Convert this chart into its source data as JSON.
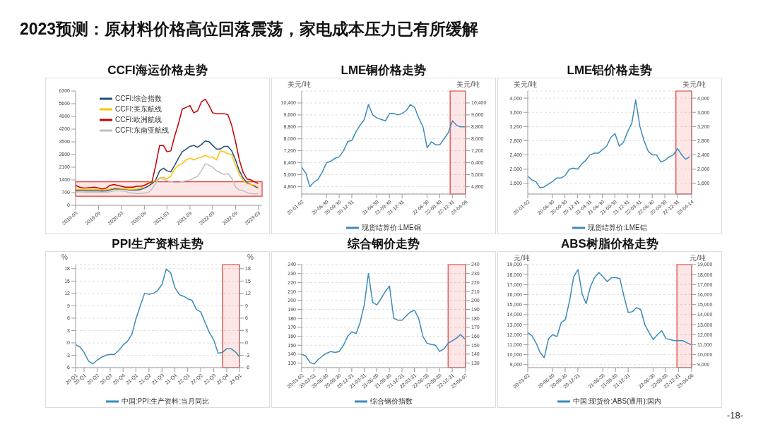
{
  "chart_data": [
    {
      "type": "other",
      "title": "2023预测：原材料价格高位回落震荡，家电成本压力已有所缓解",
      "annotations": [
        "-18-"
      ]
    },
    {
      "type": "line",
      "title": "CCFI海运价格走势",
      "legend": "top left",
      "x": [
        "2019-03",
        "2019-04",
        "2019-05",
        "2019-06",
        "2019-07",
        "2019-08",
        "2019-09",
        "2019-10",
        "2019-11",
        "2019-12",
        "2020-01",
        "2020-02",
        "2020-03",
        "2020-04",
        "2020-05",
        "2020-06",
        "2020-07",
        "2020-08",
        "2020-09",
        "2020-10",
        "2020-11",
        "2020-12",
        "2021-01",
        "2021-02",
        "2021-03",
        "2021-04",
        "2021-05",
        "2021-06",
        "2021-07",
        "2021-08",
        "2021-09",
        "2021-10",
        "2021-11",
        "2021-12",
        "2022-01",
        "2022-02",
        "2022-03",
        "2022-04",
        "2022-05",
        "2022-06",
        "2022-07",
        "2022-08",
        "2022-09",
        "2022-10",
        "2022-11",
        "2022-12",
        "2023-01",
        "2023-02",
        "2023-03"
      ],
      "xlim": [
        "2019-03",
        "2023-04"
      ],
      "xticks": [
        "2019-03",
        "2019-09",
        "2020-03",
        "2020-09",
        "2021-03",
        "2021-09",
        "2022-03",
        "2022-09",
        "2023-03"
      ],
      "ylim": [
        0,
        6300
      ],
      "yticks": [
        0,
        700,
        1400,
        2100,
        2800,
        3500,
        4200,
        4900,
        5600,
        6300
      ],
      "bands": [
        {
          "axis": "y",
          "from": 500,
          "to": 1300,
          "color": "#e53935"
        }
      ],
      "series": [
        {
          "name": "CCFI:综合指数",
          "color": "#1f4e79",
          "values": [
            830,
            820,
            810,
            800,
            800,
            800,
            800,
            790,
            800,
            850,
            900,
            900,
            900,
            880,
            860,
            850,
            850,
            870,
            950,
            1050,
            1200,
            1400,
            1900,
            2050,
            1900,
            1850,
            2200,
            2600,
            2950,
            3100,
            3250,
            3300,
            3200,
            3350,
            3550,
            3500,
            3300,
            3100,
            3100,
            3250,
            3250,
            3000,
            2500,
            1900,
            1500,
            1250,
            1150,
            1050,
            950
          ]
        },
        {
          "name": "CCFI:美东航线",
          "color": "#ffc000",
          "values": [
            880,
            870,
            860,
            860,
            870,
            880,
            870,
            860,
            870,
            900,
            950,
            950,
            920,
            900,
            880,
            880,
            900,
            950,
            1100,
            1250,
            1300,
            1350,
            1500,
            1550,
            1450,
            1600,
            2000,
            2200,
            2300,
            2500,
            2600,
            2500,
            2600,
            2650,
            2750,
            2650,
            2650,
            2500,
            3000,
            2950,
            2850,
            2800,
            2200,
            1700,
            1350,
            1200,
            1150,
            1100,
            1000
          ]
        },
        {
          "name": "CCFI:欧洲航线",
          "color": "#c00000",
          "values": [
            1100,
            1000,
            950,
            960,
            980,
            1000,
            950,
            900,
            950,
            1100,
            1150,
            1100,
            1050,
            1000,
            1000,
            1000,
            1050,
            1050,
            1100,
            1200,
            1300,
            2200,
            3300,
            3300,
            2950,
            3000,
            3800,
            4500,
            5300,
            5400,
            5500,
            5100,
            5200,
            5700,
            5850,
            5500,
            5100,
            5050,
            5050,
            5050,
            5000,
            4400,
            3500,
            2500,
            1800,
            1450,
            1400,
            1300,
            1200
          ]
        },
        {
          "name": "CCFI:东南亚航线",
          "color": "#bfbfbf",
          "values": [
            750,
            740,
            730,
            720,
            720,
            730,
            720,
            700,
            720,
            750,
            800,
            800,
            800,
            780,
            700,
            680,
            650,
            650,
            680,
            700,
            900,
            1200,
            1500,
            1450,
            1350,
            1300,
            1250,
            1250,
            1300,
            1350,
            1400,
            1500,
            1600,
            1900,
            2300,
            2200,
            2100,
            1900,
            1800,
            1700,
            1750,
            1500,
            1000,
            850,
            800,
            700,
            650,
            620,
            650
          ]
        }
      ]
    },
    {
      "type": "line",
      "title": "LME铜价格走势",
      "ylabel": "美元/吨",
      "y2label": "美元/吨",
      "grid": "y",
      "legend": "bottom",
      "x": [
        "2020-01-02",
        "2020-02",
        "2020-03",
        "2020-04",
        "2020-05",
        "2020-06",
        "2020-07",
        "2020-08",
        "2020-09",
        "2020-10",
        "2020-11",
        "2020-12",
        "2021-01",
        "2021-02",
        "2021-03",
        "2021-04",
        "2021-05",
        "2021-06",
        "2021-07",
        "2021-08",
        "2021-09",
        "2021-10",
        "2021-11",
        "2021-12",
        "2022-01",
        "2022-02",
        "2022-03",
        "2022-04",
        "2022-05",
        "2022-06",
        "2022-07",
        "2022-08",
        "2022-09",
        "2022-10",
        "2022-11",
        "2022-12",
        "2023-01",
        "2023-02",
        "2023-03",
        "2023-04"
      ],
      "xlim": [
        "2020-01-02",
        "2023-04-06"
      ],
      "xticks": [
        {
          "value": "2020-01-02",
          "label": "20-01-02"
        },
        {
          "value": "2020-06-30",
          "label": "20-06-30"
        },
        {
          "value": "2020-09-30",
          "label": "20-09-30"
        },
        {
          "value": "2020-12-31",
          "label": "20-12-31"
        },
        {
          "value": "2021-06-30",
          "label": "21-06-30"
        },
        {
          "value": "2021-09-30",
          "label": "21-09-30"
        },
        {
          "value": "2021-12-31",
          "label": "21-12-31"
        },
        {
          "value": "2022-06-30",
          "label": "22-06-30"
        },
        {
          "value": "2022-09-30",
          "label": "22-09-30"
        },
        {
          "value": "2022-12-31",
          "label": "22-12-31"
        },
        {
          "value": "2023-04-06",
          "label": "23-04-06"
        }
      ],
      "ylim": [
        4300,
        11200
      ],
      "yticks": [
        {
          "value": 4800,
          "label": "4,800"
        },
        {
          "value": 5600,
          "label": "5,600"
        },
        {
          "value": 6400,
          "label": "6,400"
        },
        {
          "value": 7200,
          "label": "7,200"
        },
        {
          "value": 8000,
          "label": "8,000"
        },
        {
          "value": 8800,
          "label": "8,800"
        },
        {
          "value": 9600,
          "label": "9,600"
        },
        {
          "value": 10400,
          "label": "10,400"
        }
      ],
      "y2lim": [
        4300,
        11200
      ],
      "y2ticks": [
        {
          "value": 4800,
          "label": "4,800"
        },
        {
          "value": 5600,
          "label": "5,600"
        },
        {
          "value": 6400,
          "label": "6,400"
        },
        {
          "value": 7200,
          "label": "7,200"
        },
        {
          "value": 8000,
          "label": "8,000"
        },
        {
          "value": 8800,
          "label": "8,800"
        },
        {
          "value": 9600,
          "label": "9,600"
        },
        {
          "value": 10400,
          "label": "10,400"
        }
      ],
      "bands": [
        {
          "axis": "x",
          "from": "2022-12-15",
          "to": "2023-04-06",
          "color": "#e53935"
        }
      ],
      "series": [
        {
          "name": "现货结算价:LME铜",
          "color": "#3b8bba",
          "values": [
            6100,
            5700,
            4800,
            5100,
            5300,
            5800,
            6400,
            6500,
            6700,
            6800,
            7200,
            7800,
            7900,
            8500,
            8900,
            9300,
            10300,
            9600,
            9400,
            9300,
            9200,
            9700,
            9700,
            9600,
            9700,
            9900,
            10300,
            10100,
            9400,
            8800,
            7400,
            7800,
            7600,
            7600,
            8000,
            8400,
            9200,
            8900,
            8800,
            8800
          ]
        }
      ]
    },
    {
      "type": "line",
      "title": "LME铝价格走势",
      "ylabel": "美元/吨",
      "y2label": "美元/吨",
      "grid": "y",
      "legend": "bottom",
      "x": [
        "2020-01-02",
        "2020-02",
        "2020-03",
        "2020-04",
        "2020-05",
        "2020-06",
        "2020-07",
        "2020-08",
        "2020-09",
        "2020-10",
        "2020-11",
        "2020-12",
        "2021-01",
        "2021-02",
        "2021-03",
        "2021-04",
        "2021-05",
        "2021-06",
        "2021-07",
        "2021-08",
        "2021-09",
        "2021-10",
        "2021-11",
        "2021-12",
        "2022-01",
        "2022-02",
        "2022-03",
        "2022-04",
        "2022-05",
        "2022-06",
        "2022-07",
        "2022-08",
        "2022-09",
        "2022-10",
        "2022-11",
        "2022-12",
        "2023-01",
        "2023-02",
        "2023-03",
        "2023-04"
      ],
      "xlim": [
        "2020-01-02",
        "2023-04-14"
      ],
      "xticks": [
        {
          "value": "2020-01-02",
          "label": "20-01-02"
        },
        {
          "value": "2020-06-30",
          "label": "20-06-30"
        },
        {
          "value": "2020-09-30",
          "label": "20-09-30"
        },
        {
          "value": "2020-12-31",
          "label": "20-12-31"
        },
        {
          "value": "2021-03-31",
          "label": "21-03-31"
        },
        {
          "value": "2021-06-30",
          "label": "21-06-30"
        },
        {
          "value": "2021-09-30",
          "label": "21-09-30"
        },
        {
          "value": "2021-12-31",
          "label": "21-12-31"
        },
        {
          "value": "2022-03-31",
          "label": "22-03-31"
        },
        {
          "value": "2022-06-30",
          "label": "22-06-30"
        },
        {
          "value": "2022-09-30",
          "label": "22-09-30"
        },
        {
          "value": "2022-12-31",
          "label": "22-12-31"
        },
        {
          "value": "2023-04-14",
          "label": "23-04-14"
        }
      ],
      "ylim": [
        1300,
        4200
      ],
      "yticks": [
        {
          "value": 1600,
          "label": "1,600"
        },
        {
          "value": 2000,
          "label": "2,000"
        },
        {
          "value": 2400,
          "label": "2,400"
        },
        {
          "value": 2800,
          "label": "2,800"
        },
        {
          "value": 3200,
          "label": "3,200"
        },
        {
          "value": 3600,
          "label": "3,600"
        },
        {
          "value": 4000,
          "label": "4,000"
        }
      ],
      "y2lim": [
        1300,
        4200
      ],
      "y2ticks": [
        {
          "value": 1600,
          "label": "1,600"
        },
        {
          "value": 2000,
          "label": "2,000"
        },
        {
          "value": 2400,
          "label": "2,400"
        },
        {
          "value": 2800,
          "label": "2,800"
        },
        {
          "value": 3200,
          "label": "3,200"
        },
        {
          "value": 3600,
          "label": "3,600"
        },
        {
          "value": 4000,
          "label": "4,000"
        }
      ],
      "bands": [
        {
          "axis": "x",
          "from": "2022-12-20",
          "to": "2023-04-14",
          "color": "#e53935"
        }
      ],
      "series": [
        {
          "name": "现货结算价:LME铝",
          "color": "#3b8bba",
          "values": [
            1800,
            1700,
            1650,
            1480,
            1500,
            1580,
            1650,
            1750,
            1750,
            1820,
            2000,
            2030,
            2000,
            2150,
            2250,
            2400,
            2450,
            2450,
            2550,
            2650,
            2900,
            3000,
            2650,
            2750,
            3050,
            3300,
            3950,
            3200,
            2800,
            2500,
            2400,
            2400,
            2200,
            2250,
            2350,
            2400,
            2580,
            2400,
            2280,
            2350
          ]
        }
      ]
    },
    {
      "type": "line",
      "title": "PPI生产资料走势",
      "ylabel": "%",
      "y2label": "%",
      "grid": "y",
      "legend": "bottom",
      "x": [
        "2020-01",
        "2020-02",
        "2020-03",
        "2020-04",
        "2020-05",
        "2020-06",
        "2020-07",
        "2020-08",
        "2020-09",
        "2020-10",
        "2020-11",
        "2020-12",
        "2021-01",
        "2021-02",
        "2021-03",
        "2021-04",
        "2021-05",
        "2021-06",
        "2021-07",
        "2021-08",
        "2021-09",
        "2021-10",
        "2021-11",
        "2021-12",
        "2022-01",
        "2022-02",
        "2022-03",
        "2022-04",
        "2022-05",
        "2022-06",
        "2022-07",
        "2022-08",
        "2022-09",
        "2022-10",
        "2022-11",
        "2022-12",
        "2023-01",
        "2023-02",
        "2023-03"
      ],
      "xlim": [
        "2020-01",
        "2023-03"
      ],
      "xticks": [
        {
          "value": "2020-01",
          "label": "20-Q1"
        },
        {
          "value": "2020-03",
          "label": "20-Q1"
        },
        {
          "value": "2020-06",
          "label": "20-Q2"
        },
        {
          "value": "2020-09",
          "label": "20-Q3"
        },
        {
          "value": "2020-12",
          "label": "20-Q4"
        },
        {
          "value": "2021-03",
          "label": "21-Q1"
        },
        {
          "value": "2021-06",
          "label": "21-Q2"
        },
        {
          "value": "2021-09",
          "label": "21-Q3"
        },
        {
          "value": "2021-12",
          "label": "21-Q4"
        },
        {
          "value": "2022-03",
          "label": "22-Q1"
        },
        {
          "value": "2022-06",
          "label": "22-Q2"
        },
        {
          "value": "2022-09",
          "label": "22-Q3"
        },
        {
          "value": "2022-12",
          "label": "22-Q4"
        },
        {
          "value": "2023-03",
          "label": "23-Q1"
        }
      ],
      "ylim": [
        -6,
        19
      ],
      "yticks": [
        -6,
        -3,
        0,
        3,
        6,
        9,
        12,
        15,
        18
      ],
      "y2lim": [
        -6,
        19
      ],
      "y2ticks": [
        -6,
        -3,
        0,
        3,
        6,
        9,
        12,
        15,
        18
      ],
      "bands": [
        {
          "axis": "x",
          "from": "2022-11",
          "to": "2023-03",
          "color": "#e53935"
        }
      ],
      "series": [
        {
          "name": "中国:PPI:生产资料:当月同比",
          "color": "#3b8bba",
          "values": [
            -0.4,
            -1.0,
            -2.3,
            -4.4,
            -5.1,
            -4.2,
            -3.5,
            -3.0,
            -2.8,
            -2.8,
            -1.8,
            -0.5,
            0.4,
            2.1,
            5.8,
            9.0,
            12.0,
            11.8,
            12.0,
            12.7,
            14.2,
            17.9,
            17.0,
            13.4,
            11.7,
            11.3,
            10.7,
            10.3,
            8.1,
            7.5,
            5.0,
            2.5,
            0.7,
            -2.5,
            -2.3,
            -1.4,
            -1.4,
            -2.2,
            -3.4
          ]
        }
      ]
    },
    {
      "type": "line",
      "title": "综合钢价走势",
      "grid": "y",
      "legend": "bottom",
      "x": [
        "2020-01-02",
        "2020-02",
        "2020-03",
        "2020-04",
        "2020-05",
        "2020-06",
        "2020-07",
        "2020-08",
        "2020-09",
        "2020-10",
        "2020-11",
        "2020-12",
        "2021-01",
        "2021-02",
        "2021-03",
        "2021-04",
        "2021-05",
        "2021-06",
        "2021-07",
        "2021-08",
        "2021-09",
        "2021-10",
        "2021-11",
        "2021-12",
        "2022-01",
        "2022-02",
        "2022-03",
        "2022-04",
        "2022-05",
        "2022-06",
        "2022-07",
        "2022-08",
        "2022-09",
        "2022-10",
        "2022-11",
        "2022-12",
        "2023-01",
        "2023-02",
        "2023-03",
        "2023-04"
      ],
      "xlim": [
        "2020-01-02",
        "2023-04-07"
      ],
      "xticks": [
        {
          "value": "2020-01-02",
          "label": "20-01-02"
        },
        {
          "value": "2020-03-31",
          "label": "20-03-31"
        },
        {
          "value": "2020-06-30",
          "label": "20-06-30"
        },
        {
          "value": "2020-09-30",
          "label": "20-09-30"
        },
        {
          "value": "2020-12-31",
          "label": "20-12-31"
        },
        {
          "value": "2021-03-31",
          "label": "21-03-31"
        },
        {
          "value": "2021-06-30",
          "label": "21-06-30"
        },
        {
          "value": "2021-09-30",
          "label": "21-09-30"
        },
        {
          "value": "2021-12-31",
          "label": "21-12-31"
        },
        {
          "value": "2022-03-31",
          "label": "22-03-31"
        },
        {
          "value": "2022-06-30",
          "label": "22-06-30"
        },
        {
          "value": "2022-09-30",
          "label": "22-09-30"
        },
        {
          "value": "2022-12-31",
          "label": "22-12-31"
        },
        {
          "value": "2023-04-07",
          "label": "23-04-07"
        }
      ],
      "ylim": [
        125,
        240
      ],
      "yticks": [
        130,
        140,
        150,
        160,
        170,
        180,
        190,
        200,
        210,
        220,
        230,
        240
      ],
      "y2lim": [
        125,
        240
      ],
      "y2ticks": [
        130,
        140,
        150,
        160,
        170,
        180,
        190,
        200,
        210,
        220,
        230,
        240
      ],
      "bands": [
        {
          "axis": "x",
          "from": "2022-12-01",
          "to": "2023-04-07",
          "color": "#e53935"
        }
      ],
      "series": [
        {
          "name": "综合钢价指数",
          "color": "#3b8bba",
          "values": [
            140,
            138,
            131,
            129,
            134,
            138,
            141,
            143,
            142,
            143,
            150,
            160,
            165,
            163,
            175,
            195,
            230,
            198,
            195,
            202,
            210,
            216,
            180,
            178,
            178,
            183,
            187,
            189,
            180,
            160,
            152,
            151,
            150,
            143,
            146,
            152,
            155,
            158,
            162,
            157
          ]
        }
      ]
    },
    {
      "type": "line",
      "title": "ABS树脂价格走势",
      "ylabel": "元/吨",
      "y2label": "元/吨",
      "grid": "y",
      "legend": "bottom",
      "x": [
        "2020-01-02",
        "2020-02",
        "2020-03",
        "2020-04",
        "2020-05",
        "2020-06",
        "2020-07",
        "2020-08",
        "2020-09",
        "2020-10",
        "2020-11",
        "2020-12",
        "2021-01",
        "2021-02",
        "2021-03",
        "2021-04",
        "2021-05",
        "2021-06",
        "2021-07",
        "2021-08",
        "2021-09",
        "2021-10",
        "2021-11",
        "2021-12",
        "2022-01",
        "2022-02",
        "2022-03",
        "2022-04",
        "2022-05",
        "2022-06",
        "2022-07",
        "2022-08",
        "2022-09",
        "2022-10",
        "2022-11",
        "2022-12",
        "2023-01",
        "2023-02",
        "2023-03",
        "2023-04"
      ],
      "xlim": [
        "2020-01-02",
        "2023-04-06"
      ],
      "xticks": [
        {
          "value": "2020-01-02",
          "label": "20-01-02"
        },
        {
          "value": "2020-06-30",
          "label": "20-06-30"
        },
        {
          "value": "2020-09-30",
          "label": "20-09-30"
        },
        {
          "value": "2020-12-31",
          "label": "20-12-31"
        },
        {
          "value": "2021-06-30",
          "label": "21-06-30"
        },
        {
          "value": "2021-09-30",
          "label": "21-09-30"
        },
        {
          "value": "2021-12-31",
          "label": "21-12-31"
        },
        {
          "value": "2022-06-30",
          "label": "22-06-30"
        },
        {
          "value": "2022-09-30",
          "label": "22-09-30"
        },
        {
          "value": "2022-12-31",
          "label": "22-12-31"
        },
        {
          "value": "2023-04-06",
          "label": "23-04-06"
        }
      ],
      "ylim": [
        8700,
        19000
      ],
      "yticks": [
        {
          "value": 9000,
          "label": "9,000"
        },
        {
          "value": 10000,
          "label": "10,000"
        },
        {
          "value": 11000,
          "label": "11,000"
        },
        {
          "value": 12000,
          "label": "12,000"
        },
        {
          "value": 13000,
          "label": "13,000"
        },
        {
          "value": 14000,
          "label": "14,000"
        },
        {
          "value": 15000,
          "label": "15,000"
        },
        {
          "value": 16000,
          "label": "16,000"
        },
        {
          "value": 17000,
          "label": "17,000"
        },
        {
          "value": 18000,
          "label": "18,000"
        },
        {
          "value": 19000,
          "label": "19,000"
        }
      ],
      "y2lim": [
        8700,
        19000
      ],
      "y2ticks": [
        {
          "value": 9000,
          "label": "9,000"
        },
        {
          "value": 10000,
          "label": "10,000"
        },
        {
          "value": 11000,
          "label": "11,000"
        },
        {
          "value": 12000,
          "label": "12,000"
        },
        {
          "value": 13000,
          "label": "13,000"
        },
        {
          "value": 14000,
          "label": "14,000"
        },
        {
          "value": 15000,
          "label": "15,000"
        },
        {
          "value": 16000,
          "label": "16,000"
        },
        {
          "value": 17000,
          "label": "17,000"
        },
        {
          "value": 18000,
          "label": "18,000"
        },
        {
          "value": 19000,
          "label": "19,000"
        }
      ],
      "bands": [
        {
          "axis": "x",
          "from": "2022-12-20",
          "to": "2023-04-06",
          "color": "#e53935"
        }
      ],
      "series": [
        {
          "name": "中国:现货价:ABS(通用):国内",
          "color": "#3b8bba",
          "values": [
            12200,
            11900,
            11200,
            10200,
            9700,
            11600,
            12000,
            11800,
            13200,
            13500,
            15400,
            17800,
            18500,
            16000,
            15100,
            16800,
            17700,
            18200,
            17800,
            17300,
            17700,
            17700,
            17600,
            15800,
            14200,
            14300,
            14700,
            14500,
            13000,
            12200,
            11500,
            12000,
            12400,
            11600,
            11500,
            11400,
            11400,
            11400,
            11200,
            11000
          ]
        }
      ]
    }
  ]
}
